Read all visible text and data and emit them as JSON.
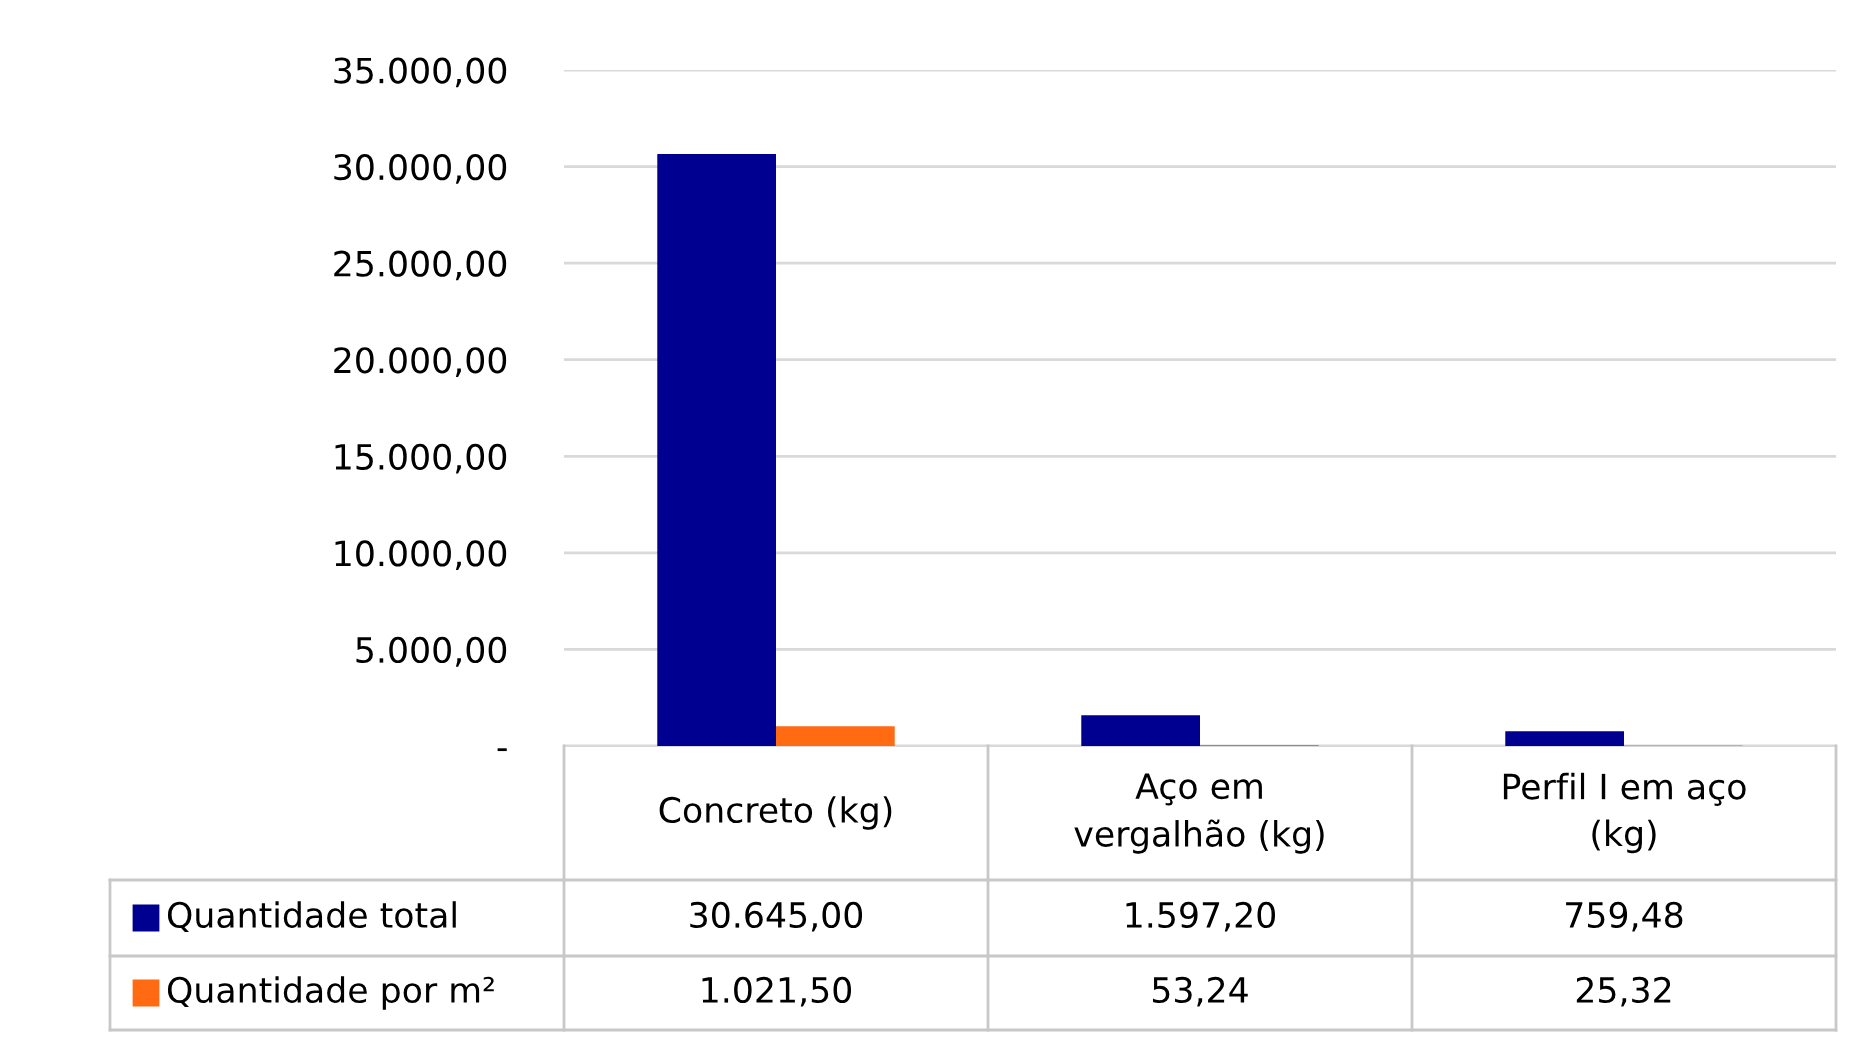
{
  "chart_data": {
    "type": "bar",
    "categories": [
      "Concreto (kg)",
      "Aço em vergalhão (kg)",
      "Perfil I em aço (kg)"
    ],
    "series": [
      {
        "name": "Quantidade total",
        "color": "#000090",
        "values": [
          30645.0,
          1597.2,
          759.48
        ],
        "value_labels": [
          "30.645,00",
          "1.597,20",
          "759,48"
        ]
      },
      {
        "name": "Quantidade por m²",
        "color": "#ff6a13",
        "values": [
          1021.5,
          53.24,
          25.32
        ],
        "value_labels": [
          "1.021,50",
          "53,24",
          "25,32"
        ]
      }
    ],
    "ylim": [
      0,
      35000
    ],
    "yticks": [
      {
        "value": 0,
        "label": "-"
      },
      {
        "value": 5000,
        "label": "5.000,00"
      },
      {
        "value": 10000,
        "label": "10.000,00"
      },
      {
        "value": 15000,
        "label": "15.000,00"
      },
      {
        "value": 20000,
        "label": "20.000,00"
      },
      {
        "value": 25000,
        "label": "25.000,00"
      },
      {
        "value": 30000,
        "label": "30.000,00"
      },
      {
        "value": 35000,
        "label": "35.000,00"
      }
    ],
    "grid": "y",
    "legend": "bottom"
  }
}
